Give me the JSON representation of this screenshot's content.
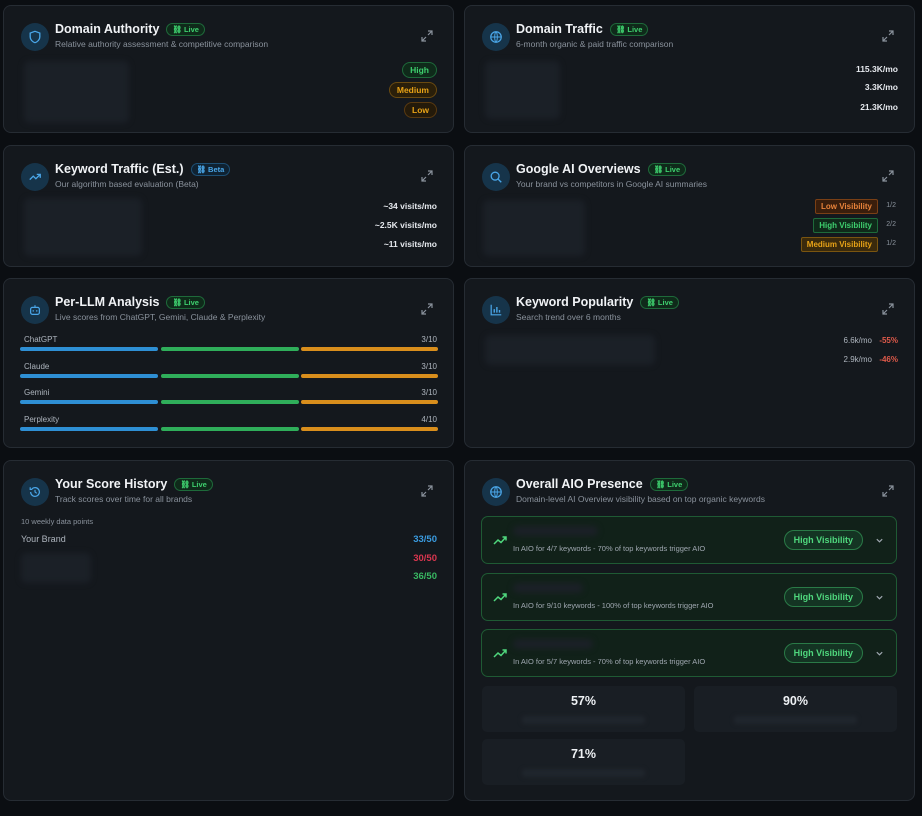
{
  "domain_authority": {
    "title": "Domain Authority",
    "badge": "Live",
    "subtitle": "Relative authority assessment & competitive comparison",
    "levels": [
      "High",
      "Medium",
      "Low"
    ]
  },
  "domain_traffic": {
    "title": "Domain Traffic",
    "badge": "Live",
    "subtitle": "6-month organic & paid traffic comparison",
    "values": [
      "115.3K/mo",
      "3.3K/mo",
      "21.3K/mo"
    ]
  },
  "keyword_traffic": {
    "title": "Keyword Traffic (Est.)",
    "badge": "Beta",
    "subtitle": "Our algorithm based evaluation (Beta)",
    "values": [
      "~34 visits/mo",
      "~2.5K visits/mo",
      "~11 visits/mo"
    ]
  },
  "google_aio": {
    "title": "Google AI Overviews",
    "badge": "Live",
    "subtitle": "Your brand vs competitors in Google AI summaries",
    "rows": [
      {
        "label": "Low Visibility",
        "fraction": "1/2"
      },
      {
        "label": "High Visibility",
        "fraction": "2/2"
      },
      {
        "label": "Medium Visibility",
        "fraction": "1/2"
      }
    ]
  },
  "per_llm": {
    "title": "Per-LLM Analysis",
    "badge": "Live",
    "subtitle": "Live scores from ChatGPT, Gemini, Claude & Perplexity",
    "rows": [
      {
        "name": "ChatGPT",
        "score": "3/10"
      },
      {
        "name": "Claude",
        "score": "3/10"
      },
      {
        "name": "Gemini",
        "score": "3/10"
      },
      {
        "name": "Perplexity",
        "score": "4/10"
      }
    ]
  },
  "keyword_popularity": {
    "title": "Keyword Popularity",
    "badge": "Live",
    "subtitle": "Search trend over 6 months",
    "rows": [
      {
        "volume": "6.6k/mo",
        "change": "-55%"
      },
      {
        "volume": "2.9k/mo",
        "change": "-46%"
      }
    ]
  },
  "score_history": {
    "title": "Your Score History",
    "badge": "Live",
    "subtitle": "Track scores over time for all brands",
    "points_note": "10 weekly data points",
    "brand_label": "Your Brand",
    "scores": [
      "33/50",
      "30/50",
      "36/50"
    ]
  },
  "overall_aio": {
    "title": "Overall AIO Presence",
    "badge": "Live",
    "subtitle": "Domain-level AI Overview visibility based on top organic keywords",
    "rows": [
      {
        "detail": "In AIO for 4/7 keywords - 70% of top keywords trigger AIO",
        "status": "High Visibility"
      },
      {
        "detail": "In AIO for 9/10 keywords - 100% of top keywords trigger AIO",
        "status": "High Visibility"
      },
      {
        "detail": "In AIO for 5/7 keywords - 70% of top keywords trigger AIO",
        "status": "High Visibility"
      }
    ],
    "stats": [
      "57%",
      "90%",
      "71%"
    ]
  },
  "colors": {
    "high": "#3ecf6e",
    "medium": "#e8a317",
    "low": "#e07a3a",
    "bar_blue": "#2e8fd4",
    "bar_green": "#2fae5a",
    "bar_orange": "#d98e1c",
    "score_blue": "#3a9be0",
    "score_red": "#d9364f",
    "score_green": "#38b862"
  }
}
